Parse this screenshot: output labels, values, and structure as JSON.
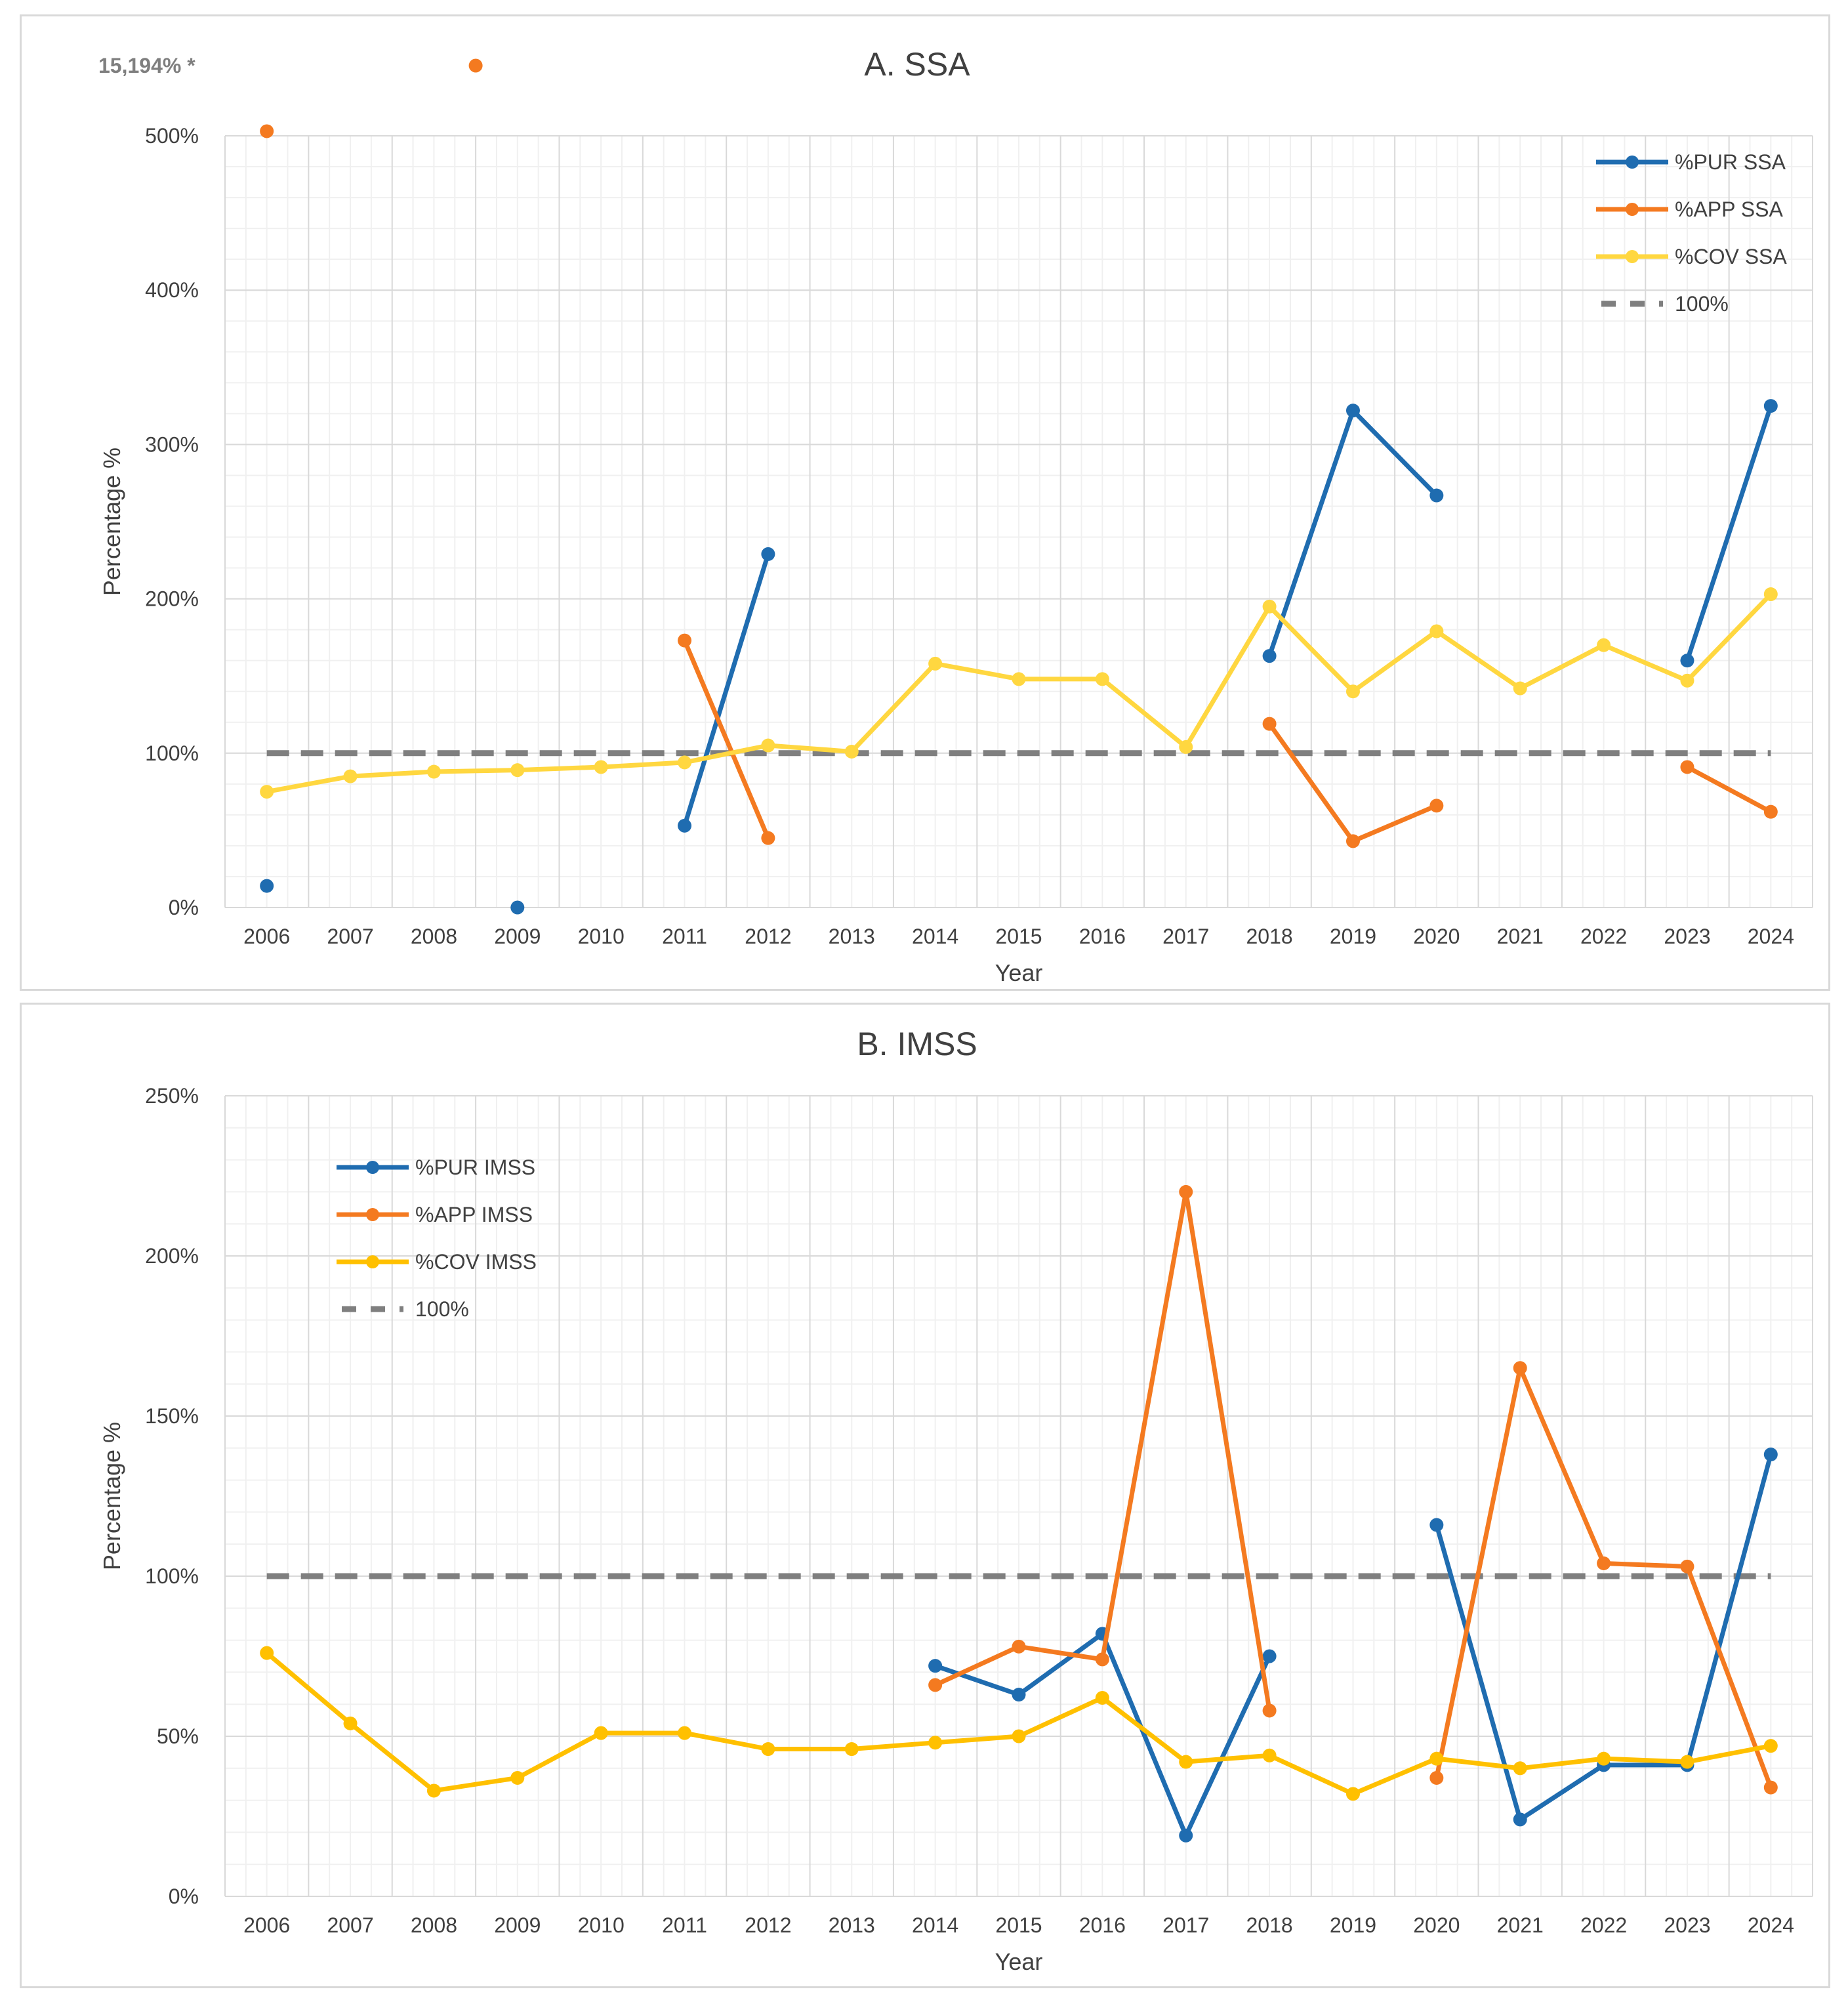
{
  "chart_data": [
    {
      "type": "line",
      "title": "A. SSA",
      "xlabel": "Year",
      "ylabel": "Percentage %",
      "ylim": [
        0,
        500
      ],
      "yticks": [
        "0%",
        "100%",
        "200%",
        "300%",
        "400%",
        "500%"
      ],
      "ytick_values": [
        0,
        100,
        200,
        300,
        400,
        500
      ],
      "categories": [
        "2006",
        "2007",
        "2008",
        "2009",
        "2010",
        "2011",
        "2012",
        "2013",
        "2014",
        "2015",
        "2016",
        "2017",
        "2018",
        "2019",
        "2020",
        "2021",
        "2022",
        "2023",
        "2024"
      ],
      "grid": true,
      "legend_position": "top-right",
      "outlier": {
        "label": "15,194% *",
        "year": "2008.5",
        "value": 15194,
        "color": "#f47a20"
      },
      "series": [
        {
          "name": "%PUR SSA",
          "color": "#1f6cb0",
          "values": [
            14,
            null,
            null,
            0,
            null,
            53,
            229,
            null,
            null,
            null,
            null,
            null,
            163,
            322,
            267,
            null,
            null,
            160,
            325
          ]
        },
        {
          "name": "%APP SSA",
          "color": "#f47a20",
          "values": [
            515,
            null,
            null,
            null,
            null,
            173,
            45,
            null,
            null,
            null,
            null,
            null,
            119,
            43,
            66,
            null,
            null,
            91,
            62
          ]
        },
        {
          "name": "%COV SSA",
          "color": "#ffd740",
          "values": [
            75,
            85,
            88,
            89,
            91,
            94,
            105,
            101,
            158,
            148,
            148,
            104,
            195,
            140,
            179,
            142,
            170,
            147,
            203
          ]
        },
        {
          "name": "100%",
          "color": "#7f7f7f",
          "dashed": true,
          "constant": 100
        }
      ]
    },
    {
      "type": "line",
      "title": "B. IMSS",
      "xlabel": "Year",
      "ylabel": "Percentage %",
      "ylim": [
        0,
        250
      ],
      "yticks": [
        "0%",
        "50%",
        "100%",
        "150%",
        "200%",
        "250%"
      ],
      "ytick_values": [
        0,
        50,
        100,
        150,
        200,
        250
      ],
      "categories": [
        "2006",
        "2007",
        "2008",
        "2009",
        "2010",
        "2011",
        "2012",
        "2013",
        "2014",
        "2015",
        "2016",
        "2017",
        "2018",
        "2019",
        "2020",
        "2021",
        "2022",
        "2023",
        "2024"
      ],
      "grid": true,
      "legend_position": "top-left",
      "series": [
        {
          "name": "%PUR IMSS",
          "color": "#1f6cb0",
          "values": [
            null,
            null,
            null,
            null,
            null,
            null,
            null,
            null,
            72,
            63,
            82,
            19,
            75,
            null,
            116,
            24,
            41,
            41,
            138
          ]
        },
        {
          "name": "%APP IMSS",
          "color": "#f47a20",
          "values": [
            null,
            null,
            null,
            null,
            null,
            null,
            null,
            null,
            66,
            78,
            74,
            220,
            58,
            null,
            37,
            165,
            104,
            103,
            34
          ]
        },
        {
          "name": "%COV IMSS",
          "color": "#ffc000",
          "values": [
            76,
            54,
            33,
            37,
            51,
            51,
            46,
            46,
            48,
            50,
            62,
            42,
            44,
            32,
            43,
            40,
            43,
            42,
            47
          ]
        },
        {
          "name": "100%",
          "color": "#7f7f7f",
          "dashed": true,
          "constant": 100
        }
      ]
    }
  ]
}
